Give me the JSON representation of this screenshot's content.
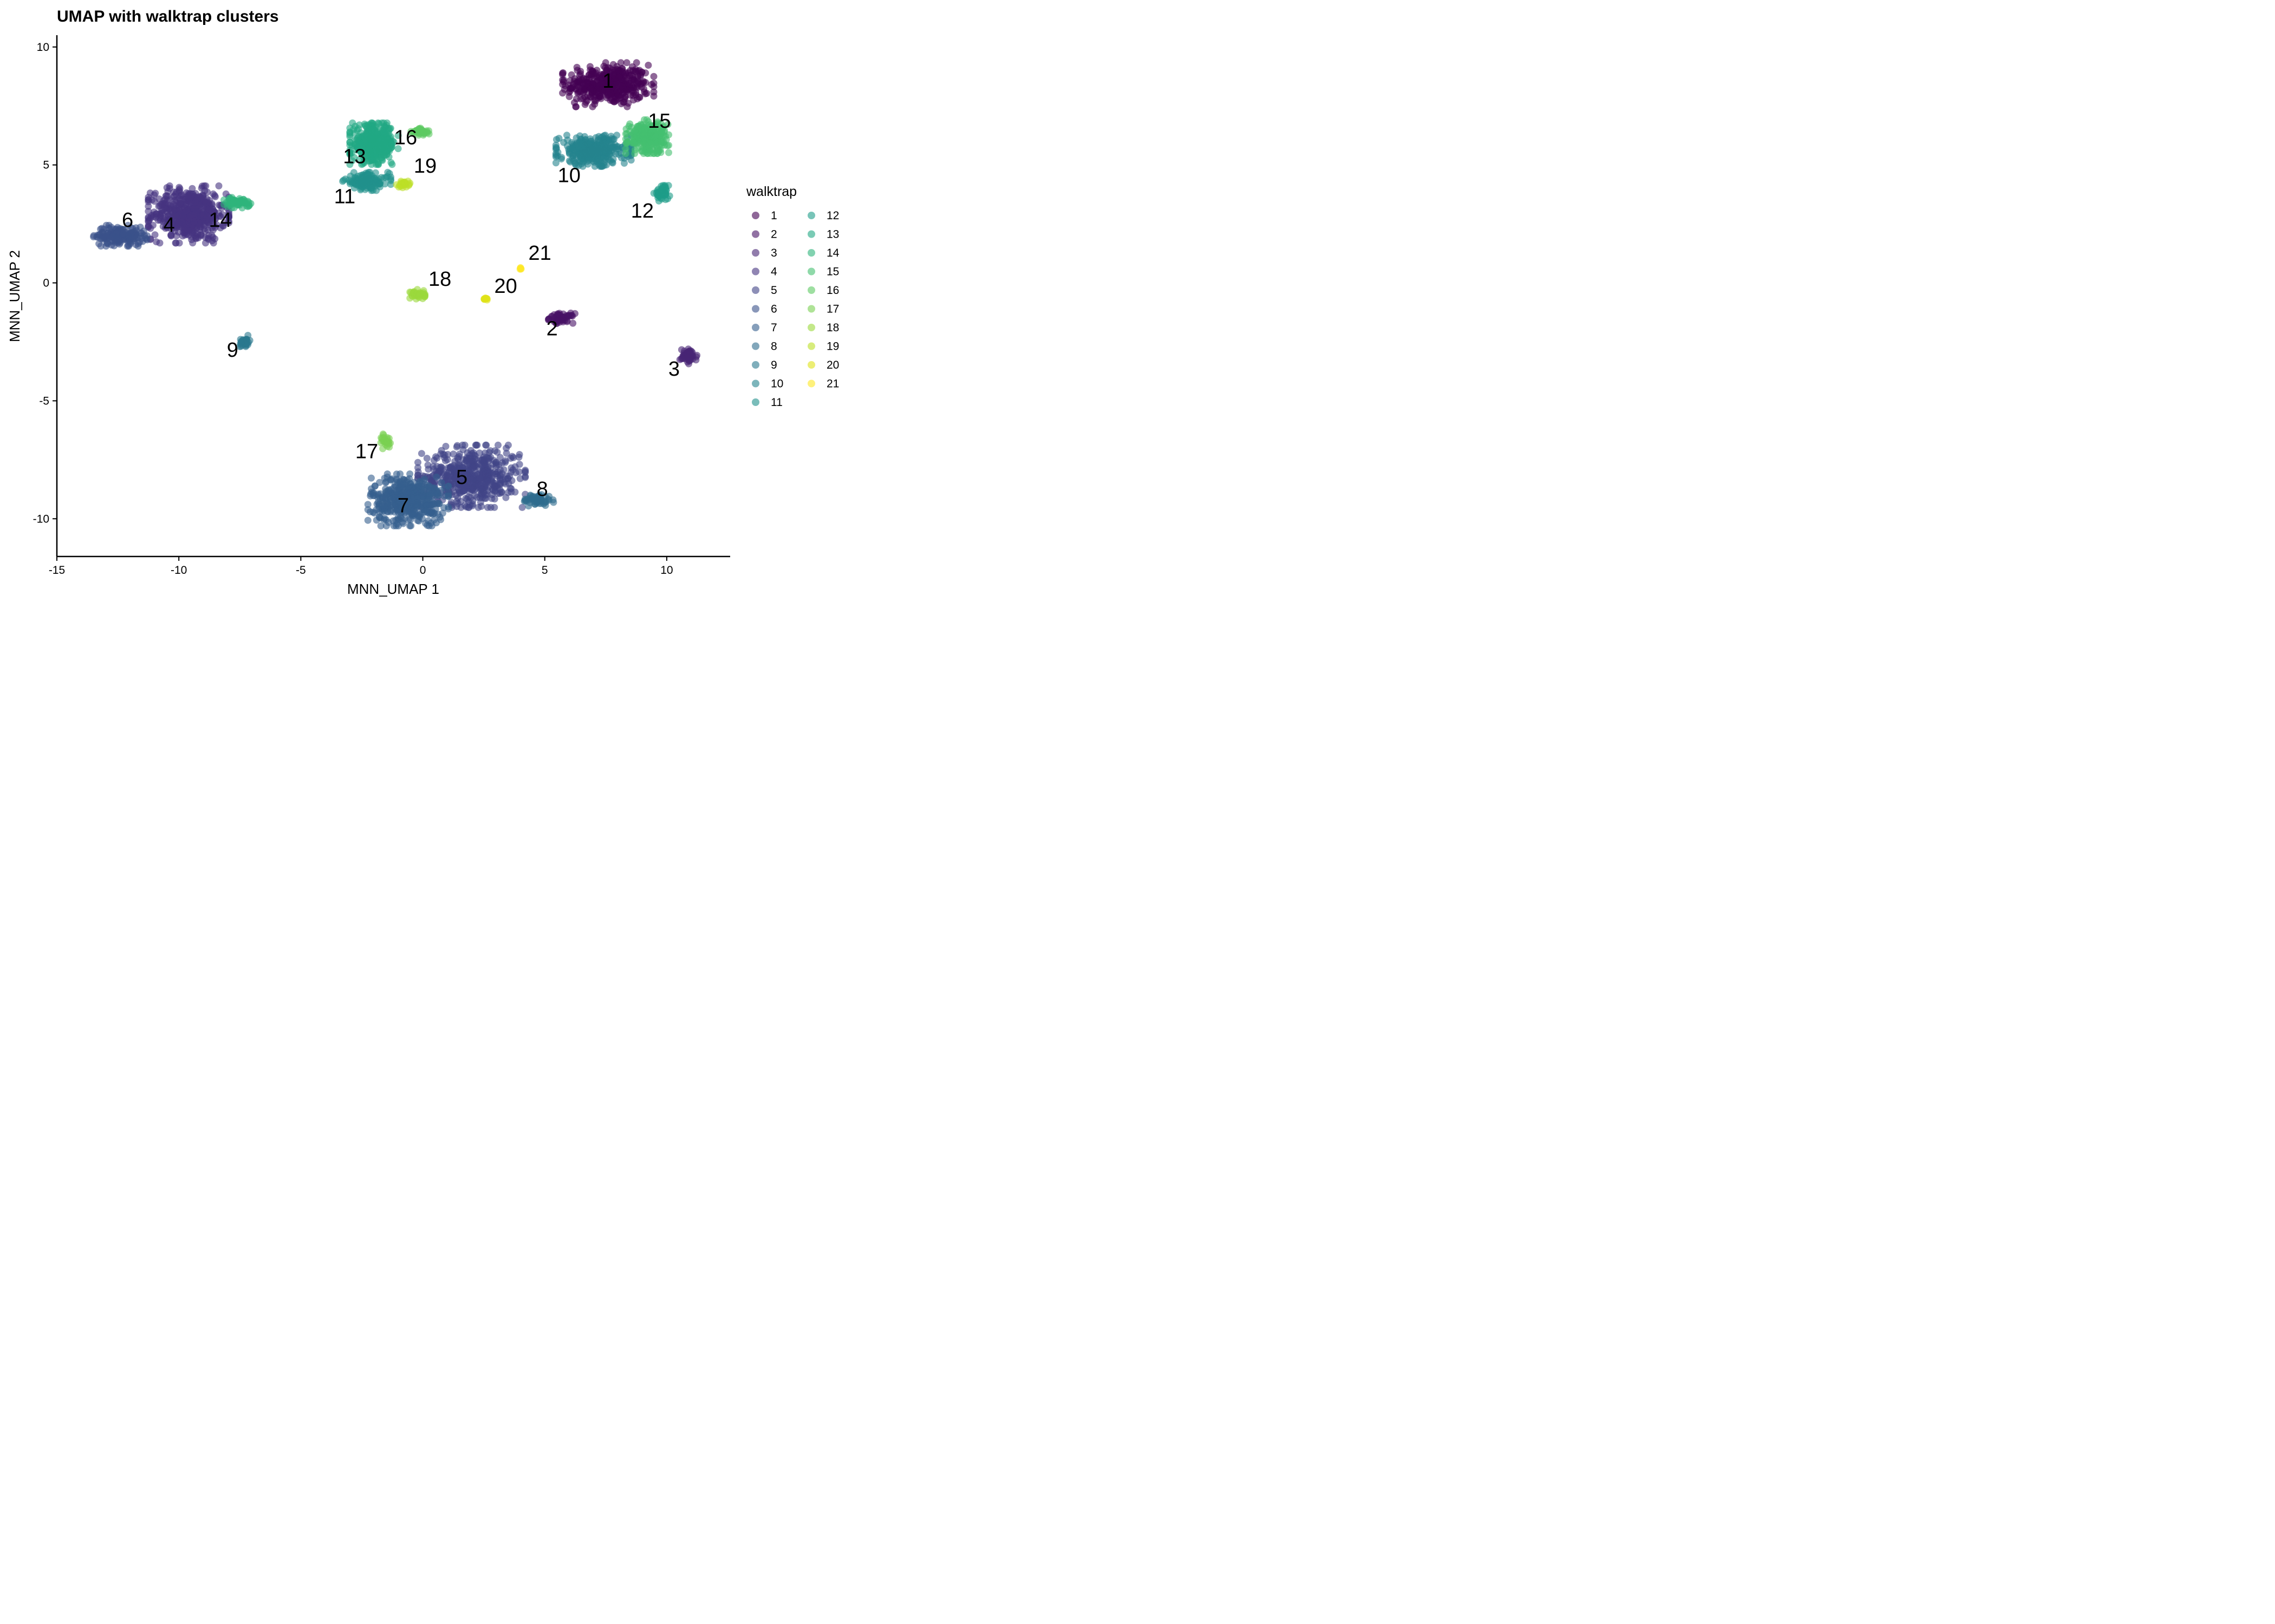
{
  "chart_data": {
    "type": "scatter",
    "title": "UMAP with walktrap clusters",
    "xlabel": "MNN_UMAP 1",
    "ylabel": "MNN_UMAP 2",
    "xlim": [
      -15,
      12.6
    ],
    "ylim": [
      -11.6,
      10.5
    ],
    "xticks": [
      -15,
      -10,
      -5,
      0,
      5,
      10
    ],
    "yticks": [
      10,
      5,
      0,
      -5,
      -10
    ],
    "grid": false,
    "legend": {
      "title": "walktrap",
      "placement": "right",
      "columns": 2
    },
    "colors": {
      "1": "#440154",
      "2": "#471365",
      "3": "#482475",
      "4": "#463480",
      "5": "#414487",
      "6": "#3b528b",
      "7": "#355f8d",
      "8": "#2f6c8e",
      "9": "#2a788e",
      "10": "#25848e",
      "11": "#21918c",
      "12": "#1e9c89",
      "13": "#22a884",
      "14": "#2fb47c",
      "15": "#44bf70",
      "16": "#5ec962",
      "17": "#7ad151",
      "18": "#9bd93c",
      "19": "#bddf26",
      "20": "#dfe318",
      "21": "#fde725"
    },
    "clusters": [
      {
        "id": "1",
        "label": "1",
        "center": [
          7.6,
          8.4
        ],
        "spread": [
          1.7,
          0.85
        ],
        "n": 420
      },
      {
        "id": "2",
        "label": "2",
        "center": [
          5.7,
          -1.5
        ],
        "spread": [
          0.5,
          0.2
        ],
        "n": 60
      },
      {
        "id": "3",
        "label": "3",
        "center": [
          10.9,
          -3.1
        ],
        "spread": [
          0.35,
          0.3
        ],
        "n": 50
      },
      {
        "id": "4",
        "label": "4",
        "center": [
          -9.6,
          2.9
        ],
        "spread": [
          1.5,
          1.1
        ],
        "n": 520
      },
      {
        "id": "5",
        "label": "5",
        "center": [
          2.0,
          -8.2
        ],
        "spread": [
          2.0,
          1.2
        ],
        "n": 520
      },
      {
        "id": "6",
        "label": "6",
        "center": [
          -12.4,
          2.0
        ],
        "spread": [
          1.0,
          0.4
        ],
        "n": 180
      },
      {
        "id": "7",
        "label": "7",
        "center": [
          -0.6,
          -9.2
        ],
        "spread": [
          1.5,
          1.0
        ],
        "n": 460
      },
      {
        "id": "8",
        "label": "8",
        "center": [
          4.7,
          -9.2
        ],
        "spread": [
          0.6,
          0.25
        ],
        "n": 60
      },
      {
        "id": "9",
        "label": "9",
        "center": [
          -7.3,
          -2.5
        ],
        "spread": [
          0.2,
          0.25
        ],
        "n": 30
      },
      {
        "id": "10",
        "label": "10",
        "center": [
          7.0,
          5.6
        ],
        "spread": [
          1.4,
          0.6
        ],
        "n": 360
      },
      {
        "id": "11",
        "label": "11",
        "center": [
          -2.3,
          4.3
        ],
        "spread": [
          0.9,
          0.35
        ],
        "n": 150
      },
      {
        "id": "12",
        "label": "12",
        "center": [
          9.8,
          3.8
        ],
        "spread": [
          0.3,
          0.3
        ],
        "n": 50
      },
      {
        "id": "13",
        "label": "13",
        "center": [
          -2.0,
          5.9
        ],
        "spread": [
          0.9,
          0.8
        ],
        "n": 380
      },
      {
        "id": "14",
        "label": "14",
        "center": [
          -7.6,
          3.4
        ],
        "spread": [
          0.5,
          0.2
        ],
        "n": 60
      },
      {
        "id": "15",
        "label": "15",
        "center": [
          9.2,
          6.2
        ],
        "spread": [
          0.8,
          0.65
        ],
        "n": 260
      },
      {
        "id": "16",
        "label": "16",
        "center": [
          -0.1,
          6.4
        ],
        "spread": [
          0.35,
          0.15
        ],
        "n": 40
      },
      {
        "id": "17",
        "label": "17",
        "center": [
          -1.5,
          -6.7
        ],
        "spread": [
          0.2,
          0.3
        ],
        "n": 30
      },
      {
        "id": "18",
        "label": "18",
        "center": [
          -0.2,
          -0.5
        ],
        "spread": [
          0.3,
          0.2
        ],
        "n": 40
      },
      {
        "id": "19",
        "label": "19",
        "center": [
          -0.8,
          4.2
        ],
        "spread": [
          0.25,
          0.15
        ],
        "n": 30
      },
      {
        "id": "20",
        "label": "20",
        "center": [
          2.6,
          -0.7
        ],
        "spread": [
          0.1,
          0.06
        ],
        "n": 10
      },
      {
        "id": "21",
        "label": "21",
        "center": [
          4.0,
          0.6
        ],
        "spread": [
          0.06,
          0.06
        ],
        "n": 5
      }
    ],
    "label_positions": {
      "1": [
        7.6,
        8.5
      ],
      "2": [
        5.3,
        -2.0
      ],
      "3": [
        10.3,
        -3.7
      ],
      "4": [
        -10.4,
        2.4
      ],
      "5": [
        1.6,
        -8.3
      ],
      "6": [
        -12.1,
        2.6
      ],
      "7": [
        -0.8,
        -9.5
      ],
      "8": [
        4.9,
        -8.8
      ],
      "9": [
        -7.8,
        -2.9
      ],
      "10": [
        6.0,
        4.5
      ],
      "11": [
        -3.2,
        3.6
      ],
      "12": [
        9.0,
        3.0
      ],
      "13": [
        -2.8,
        5.3
      ],
      "14": [
        -8.3,
        2.6
      ],
      "15": [
        9.7,
        6.8
      ],
      "16": [
        -0.7,
        6.1
      ],
      "17": [
        -2.3,
        -7.2
      ],
      "18": [
        0.7,
        0.1
      ],
      "19": [
        0.1,
        4.9
      ],
      "20": [
        3.4,
        -0.2
      ],
      "21": [
        4.8,
        1.2
      ]
    }
  }
}
